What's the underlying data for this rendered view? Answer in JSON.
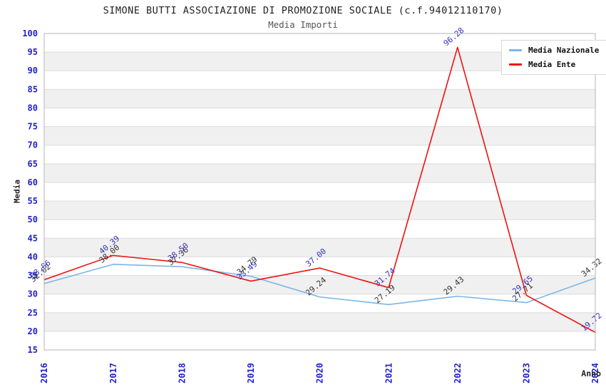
{
  "page": {
    "title": "SIMONE BUTTI ASSOCIAZIONE DI PROMOZIONE SOCIALE (c.f.94012110170)",
    "subtitle": "Media Importi"
  },
  "chart_data": {
    "type": "line",
    "title": "SIMONE BUTTI ASSOCIAZIONE DI PROMOZIONE SOCIALE (c.f.94012110170)",
    "subtitle": "Media Importi",
    "xlabel": "Anno",
    "ylabel": "Media",
    "ylim": [
      15,
      100
    ],
    "ytick_step": 5,
    "grid": true,
    "legend_position": "top-right",
    "categories": [
      "2016",
      "2017",
      "2018",
      "2019",
      "2020",
      "2021",
      "2022",
      "2023",
      "2024"
    ],
    "series": [
      {
        "name": "Media Nazionale",
        "color": "#7ab6e9",
        "label_color": "#333333",
        "values": [
          32.82,
          38.0,
          37.36,
          34.79,
          29.24,
          27.19,
          29.43,
          27.71,
          34.32
        ]
      },
      {
        "name": "Media Ente",
        "color": "#ee1111",
        "label_color": "#3333bb",
        "values": [
          33.86,
          40.39,
          38.5,
          33.49,
          37.0,
          31.74,
          96.28,
          29.65,
          19.72
        ]
      }
    ],
    "axis_label_color": "#2222cc",
    "band_colors": [
      "#ffffff",
      "#f0f0f0"
    ],
    "gridline_color": "#dcdcdc",
    "border_color": "#b4b4b4"
  }
}
